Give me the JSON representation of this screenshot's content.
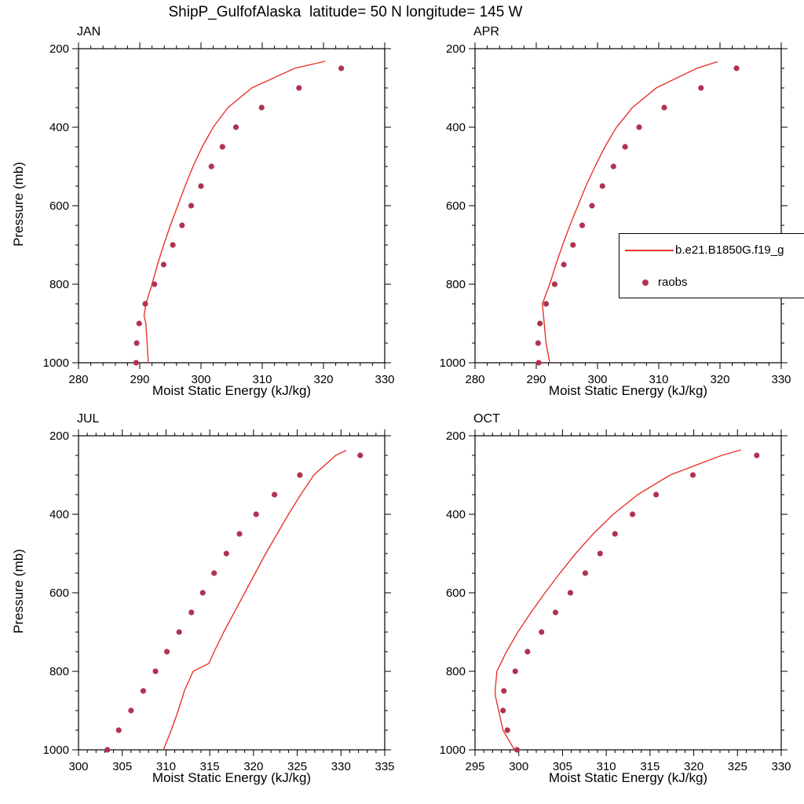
{
  "title": "ShipP_GulfofAlaska  latitude= 50 N longitude= 145 W",
  "axis": {
    "ylabel": "Pressure (mb)",
    "xlabel": "Moist Static Energy (kJ/kg)"
  },
  "legend": {
    "line_label": "b.e21.B1850G.f19_g",
    "dot_label": "raobs"
  },
  "colors": {
    "line": "#e8352b",
    "dots": "#b0334f",
    "axis": "#000000"
  },
  "chart_data": [
    {
      "type": "line",
      "month": "JAN",
      "xlabel": "Moist Static Energy (kJ/kg)",
      "ylabel": "Pressure (mb)",
      "xlim": [
        280,
        330
      ],
      "xticks": [
        280,
        290,
        300,
        310,
        320,
        330
      ],
      "x_minor_step": 2,
      "ylim": [
        200,
        1000
      ],
      "yticks": [
        200,
        400,
        600,
        800,
        1000
      ],
      "y_minor_step": 50,
      "y_inverted": true,
      "series": [
        {
          "name": "b.e21.B1850G.f19_g",
          "style": "line",
          "pressure_mb": [
            1000,
            950,
            900,
            880,
            850,
            800,
            750,
            700,
            650,
            600,
            550,
            500,
            450,
            400,
            350,
            300,
            250,
            232
          ],
          "mse_kj_kg": [
            291.4,
            291.2,
            291.0,
            290.7,
            291.0,
            292.0,
            292.9,
            293.9,
            295.0,
            296.2,
            297.4,
            298.7,
            300.2,
            302.0,
            304.4,
            308.3,
            315.3,
            320.3
          ]
        },
        {
          "name": "raobs",
          "style": "dots",
          "pressure_mb": [
            1000,
            950,
            900,
            850,
            800,
            750,
            700,
            650,
            600,
            550,
            500,
            450,
            400,
            350,
            300,
            250
          ],
          "mse_kj_kg": [
            289.4,
            289.5,
            289.9,
            290.9,
            292.4,
            293.9,
            295.4,
            296.9,
            298.4,
            300.0,
            301.7,
            303.5,
            305.7,
            309.9,
            316.0,
            322.9
          ]
        }
      ]
    },
    {
      "type": "line",
      "month": "APR",
      "xlabel": "Moist Static Energy (kJ/kg)",
      "ylabel": "Pressure (mb)",
      "xlim": [
        280,
        330
      ],
      "xticks": [
        280,
        290,
        300,
        310,
        320,
        330
      ],
      "x_minor_step": 2,
      "ylim": [
        200,
        1000
      ],
      "yticks": [
        200,
        400,
        600,
        800,
        1000
      ],
      "y_minor_step": 50,
      "y_inverted": true,
      "series": [
        {
          "name": "b.e21.B1850G.f19_g",
          "style": "line",
          "pressure_mb": [
            1000,
            950,
            900,
            850,
            800,
            750,
            700,
            650,
            600,
            550,
            500,
            450,
            400,
            350,
            300,
            250,
            233
          ],
          "mse_kj_kg": [
            292.2,
            291.6,
            291.3,
            291.0,
            292.2,
            293.2,
            294.3,
            295.5,
            296.8,
            298.1,
            299.6,
            301.2,
            303.1,
            305.7,
            309.6,
            316.2,
            319.6
          ]
        },
        {
          "name": "raobs",
          "style": "dots",
          "pressure_mb": [
            1000,
            950,
            900,
            850,
            800,
            750,
            700,
            650,
            600,
            550,
            500,
            450,
            400,
            350,
            300,
            250
          ],
          "mse_kj_kg": [
            290.4,
            290.3,
            290.6,
            291.6,
            293.0,
            294.5,
            296.0,
            297.5,
            299.1,
            300.8,
            302.6,
            304.5,
            306.8,
            310.9,
            316.9,
            322.7
          ]
        }
      ]
    },
    {
      "type": "line",
      "month": "JUL",
      "xlabel": "Moist Static Energy (kJ/kg)",
      "ylabel": "Pressure (mb)",
      "xlim": [
        300,
        335
      ],
      "xticks": [
        300,
        305,
        310,
        315,
        320,
        325,
        330,
        335
      ],
      "x_minor_step": 1,
      "ylim": [
        200,
        1000
      ],
      "yticks": [
        200,
        400,
        600,
        800,
        1000
      ],
      "y_minor_step": 50,
      "y_inverted": true,
      "series": [
        {
          "name": "b.e21.B1850G.f19_g",
          "style": "line",
          "pressure_mb": [
            1000,
            950,
            900,
            850,
            800,
            780,
            750,
            700,
            650,
            600,
            550,
            500,
            450,
            400,
            350,
            300,
            250,
            237
          ],
          "mse_kj_kg": [
            309.7,
            310.6,
            311.4,
            312.1,
            313.1,
            314.9,
            315.5,
            316.6,
            317.8,
            319.0,
            320.2,
            321.4,
            322.7,
            324.0,
            325.4,
            326.9,
            329.4,
            330.6
          ]
        },
        {
          "name": "raobs",
          "style": "dots",
          "pressure_mb": [
            1000,
            950,
            900,
            850,
            800,
            750,
            700,
            650,
            600,
            550,
            500,
            450,
            400,
            350,
            300,
            250
          ],
          "mse_kj_kg": [
            303.3,
            304.6,
            306.0,
            307.4,
            308.8,
            310.1,
            311.5,
            312.9,
            314.2,
            315.5,
            316.9,
            318.4,
            320.3,
            322.4,
            325.3,
            332.2
          ]
        }
      ]
    },
    {
      "type": "line",
      "month": "OCT",
      "xlabel": "Moist Static Energy (kJ/kg)",
      "ylabel": "Pressure (mb)",
      "xlim": [
        295,
        330
      ],
      "xticks": [
        295,
        300,
        305,
        310,
        315,
        320,
        325,
        330
      ],
      "x_minor_step": 1,
      "ylim": [
        200,
        1000
      ],
      "yticks": [
        200,
        400,
        600,
        800,
        1000
      ],
      "y_minor_step": 50,
      "y_inverted": true,
      "series": [
        {
          "name": "b.e21.B1850G.f19_g",
          "style": "line",
          "pressure_mb": [
            1000,
            950,
            900,
            860,
            850,
            800,
            750,
            700,
            650,
            600,
            550,
            500,
            450,
            400,
            350,
            300,
            250,
            236
          ],
          "mse_kj_kg": [
            299.5,
            298.2,
            297.7,
            297.3,
            297.3,
            297.5,
            298.6,
            299.9,
            301.4,
            303.0,
            304.7,
            306.5,
            308.5,
            310.8,
            313.6,
            317.3,
            323.2,
            325.4
          ]
        },
        {
          "name": "raobs",
          "style": "dots",
          "pressure_mb": [
            1000,
            950,
            900,
            850,
            800,
            750,
            700,
            650,
            600,
            550,
            500,
            450,
            400,
            350,
            300,
            250
          ],
          "mse_kj_kg": [
            299.8,
            298.7,
            298.2,
            298.3,
            299.6,
            301.0,
            302.6,
            304.2,
            305.9,
            307.6,
            309.3,
            311.0,
            313.0,
            315.7,
            319.9,
            327.2
          ]
        }
      ]
    }
  ]
}
